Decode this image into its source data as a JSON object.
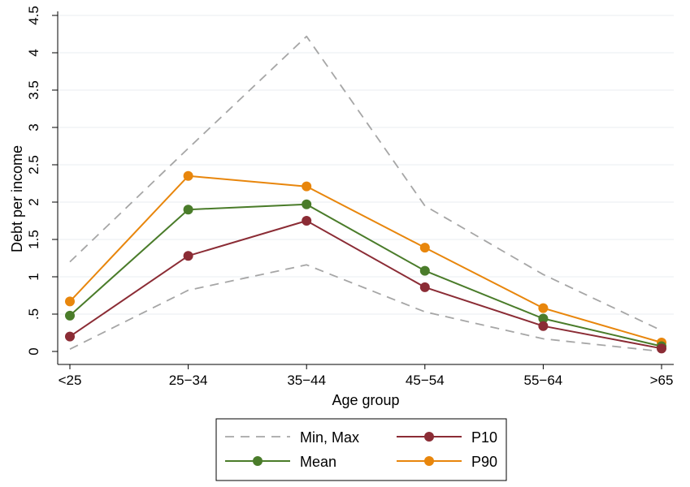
{
  "chart_data": {
    "type": "line",
    "title": "",
    "xlabel": "Age group",
    "ylabel": "Debt per income",
    "categories": [
      "<25",
      "25−34",
      "35−44",
      "45−54",
      "55−64",
      ">65"
    ],
    "ylim": [
      0,
      4.5
    ],
    "yticks": [
      0,
      0.5,
      1,
      1.5,
      2,
      2.5,
      3,
      3.5,
      4,
      4.5
    ],
    "ytick_labels": [
      "0",
      ".5",
      "1",
      "1.5",
      "2",
      "2.5",
      "3",
      "3.5",
      "4",
      "4.5"
    ],
    "grid": true,
    "legend_position": "bottom",
    "series": [
      {
        "name": "Max",
        "legend_label": "Min, Max",
        "style": "dashed",
        "markers": false,
        "color": "#a6a6a6",
        "values": [
          1.2,
          2.72,
          4.22,
          1.95,
          1.03,
          0.28
        ]
      },
      {
        "name": "Min",
        "legend_label": "Min, Max",
        "style": "dashed",
        "markers": false,
        "color": "#a6a6a6",
        "values": [
          0.03,
          0.82,
          1.16,
          0.53,
          0.17,
          0.0
        ]
      },
      {
        "name": "P90",
        "legend_label": "P90",
        "style": "solid",
        "markers": true,
        "color": "#e8860c",
        "values": [
          0.67,
          2.35,
          2.21,
          1.39,
          0.58,
          0.12
        ]
      },
      {
        "name": "Mean",
        "legend_label": "Mean",
        "style": "solid",
        "markers": true,
        "color": "#4a7c2a",
        "values": [
          0.48,
          1.9,
          1.97,
          1.08,
          0.44,
          0.07
        ]
      },
      {
        "name": "P10",
        "legend_label": "P10",
        "style": "solid",
        "markers": true,
        "color": "#8b2c35",
        "values": [
          0.2,
          1.28,
          1.75,
          0.86,
          0.34,
          0.04
        ]
      }
    ],
    "legend": [
      {
        "label": "Min, Max",
        "style": "dashed",
        "markers": false,
        "color": "#a6a6a6"
      },
      {
        "label": "P10",
        "style": "solid",
        "markers": true,
        "color": "#8b2c35"
      },
      {
        "label": "Mean",
        "style": "solid",
        "markers": true,
        "color": "#4a7c2a"
      },
      {
        "label": "P90",
        "style": "solid",
        "markers": true,
        "color": "#e8860c"
      }
    ]
  }
}
